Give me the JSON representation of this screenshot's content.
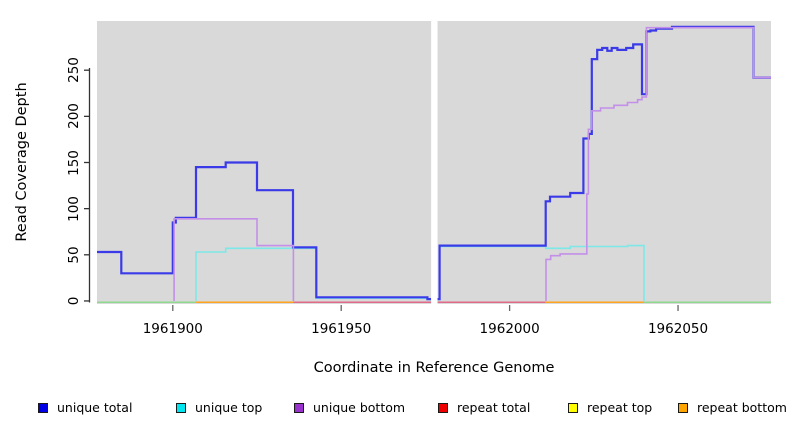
{
  "chart_data": {
    "type": "line",
    "subtype": "step-coverage-plot",
    "title": "",
    "xlabel": "Coordinate in Reference Genome",
    "ylabel": "Read Coverage Depth",
    "xlim": [
      1961877.5,
      1962077.6
    ],
    "ylim": [
      -3.3,
      303.3
    ],
    "xticks": [
      "1961900",
      "1961950",
      "1962000",
      "1962050"
    ],
    "xtick_values": [
      1961900,
      1961950,
      1962000,
      1962050
    ],
    "yticks": [
      "0",
      "50",
      "100",
      "150",
      "200",
      "250"
    ],
    "ytick_values": [
      0,
      50,
      100,
      150,
      200,
      250
    ],
    "grid": false,
    "plot_bg": "#D9D9D9",
    "gap": {
      "from": 1961976.7,
      "to": 1961978.6
    },
    "baseline_segments": [
      {
        "color": "#8FD98F",
        "from": 1961877.5,
        "to": 1961906.9
      },
      {
        "color": "#FFA41E",
        "from": 1961906.9,
        "to": 1961935.8
      },
      {
        "color": "#E06A88",
        "from": 1961935.8,
        "to": 1961976.7
      },
      {
        "color": "#E06A88",
        "from": 1961978.6,
        "to": 1962010.7
      },
      {
        "color": "#FFA41E",
        "from": 1962010.7,
        "to": 1962039.9
      },
      {
        "color": "#8FD98F",
        "from": 1962039.9,
        "to": 1962077.6
      }
    ],
    "series": [
      {
        "name": "unique top",
        "color": "#7DE8E8",
        "width": 1.6,
        "polylines": [
          [
            [
              1961906.9,
              0
            ],
            [
              1961906.9,
              53
            ],
            [
              1961915.7,
              53
            ],
            [
              1961915.7,
              57
            ],
            [
              1961942.6,
              57
            ],
            [
              1961942.6,
              3
            ],
            [
              1961975.6,
              3
            ],
            [
              1961975.6,
              1.5
            ],
            [
              1961976.7,
              1.5
            ]
          ],
          [
            [
              1961978.7,
              1.5
            ],
            [
              1961979.2,
              1.5
            ],
            [
              1961979.2,
              59
            ],
            [
              1962010.7,
              59
            ],
            [
              1962010.7,
              57
            ],
            [
              1962018,
              57
            ],
            [
              1962018,
              59
            ],
            [
              1962035,
              59
            ],
            [
              1962035,
              60
            ],
            [
              1962039.9,
              60
            ],
            [
              1962039.9,
              0
            ]
          ]
        ]
      },
      {
        "name": "unique total",
        "color": "#3A3AE8",
        "width": 2.2,
        "polylines": [
          [
            [
              1961877.5,
              53
            ],
            [
              1961884.7,
              53
            ],
            [
              1961884.7,
              30
            ],
            [
              1961900,
              30
            ],
            [
              1961900,
              85
            ],
            [
              1961900.9,
              85
            ],
            [
              1961900.9,
              90
            ],
            [
              1961906.9,
              90
            ],
            [
              1961906.9,
              145
            ],
            [
              1961915.7,
              145
            ],
            [
              1961915.7,
              150
            ],
            [
              1961925,
              150
            ],
            [
              1961925,
              120
            ],
            [
              1961935.7,
              120
            ],
            [
              1961935.7,
              58
            ],
            [
              1961942.6,
              58
            ],
            [
              1961942.6,
              4
            ],
            [
              1961975.6,
              4
            ],
            [
              1961975.6,
              2
            ],
            [
              1961976.7,
              2
            ]
          ],
          [
            [
              1961978.6,
              2
            ],
            [
              1961979.2,
              2
            ],
            [
              1961979.2,
              60
            ],
            [
              1962010.7,
              60
            ],
            [
              1962010.7,
              108
            ],
            [
              1962012,
              108
            ],
            [
              1962012,
              113
            ],
            [
              1962018,
              113
            ],
            [
              1962018,
              117
            ],
            [
              1962021.9,
              117
            ],
            [
              1962021.9,
              176
            ],
            [
              1962023.5,
              176
            ],
            [
              1962023.5,
              181
            ],
            [
              1962024.4,
              181
            ],
            [
              1962024.4,
              262
            ],
            [
              1962026,
              262
            ],
            [
              1962026,
              272
            ],
            [
              1962027.5,
              272
            ],
            [
              1962027.5,
              274
            ],
            [
              1962029,
              274
            ],
            [
              1962029,
              271
            ],
            [
              1962030.3,
              271
            ],
            [
              1962030.3,
              274
            ],
            [
              1962032,
              274
            ],
            [
              1962032,
              272
            ],
            [
              1962034.6,
              272
            ],
            [
              1962034.6,
              274
            ],
            [
              1962036.7,
              274
            ],
            [
              1962036.7,
              278
            ],
            [
              1962039.3,
              278
            ],
            [
              1962039.3,
              224
            ],
            [
              1962040.6,
              224
            ],
            [
              1962040.6,
              292
            ],
            [
              1962041.8,
              292
            ],
            [
              1962041.8,
              293
            ],
            [
              1962043.5,
              293
            ],
            [
              1962043.5,
              295
            ],
            [
              1962048.2,
              295
            ],
            [
              1962048.2,
              297
            ],
            [
              1962072.4,
              297
            ],
            [
              1962072.4,
              242
            ],
            [
              1962077.6,
              242
            ]
          ]
        ]
      },
      {
        "name": "unique bottom",
        "color": "#C38FE8",
        "width": 1.6,
        "polylines": [
          [
            [
              1961900.4,
              0
            ],
            [
              1961900.4,
              89
            ],
            [
              1961925,
              89
            ],
            [
              1961925,
              60
            ],
            [
              1961935.8,
              60
            ],
            [
              1961935.8,
              0
            ]
          ],
          [
            [
              1962010.8,
              0
            ],
            [
              1962010.8,
              45
            ],
            [
              1962012.2,
              45
            ],
            [
              1962012.2,
              49
            ],
            [
              1962015,
              49
            ],
            [
              1962015,
              51
            ],
            [
              1962022.9,
              51
            ],
            [
              1962022.9,
              116
            ],
            [
              1962023.4,
              116
            ],
            [
              1962023.4,
              186
            ],
            [
              1962024.4,
              186
            ],
            [
              1962024.4,
              206
            ],
            [
              1962027,
              206
            ],
            [
              1962027,
              209
            ],
            [
              1962031,
              209
            ],
            [
              1962031,
              212
            ],
            [
              1962035,
              212
            ],
            [
              1962035,
              215
            ],
            [
              1962038,
              215
            ],
            [
              1962038,
              218
            ],
            [
              1962039.3,
              218
            ],
            [
              1962039.3,
              221
            ],
            [
              1962040.6,
              221
            ],
            [
              1962040.6,
              296
            ],
            [
              1962072.4,
              296
            ],
            [
              1962072.4,
              242
            ],
            [
              1962077.6,
              242
            ]
          ]
        ]
      }
    ],
    "legend": {
      "position": "bottom",
      "items": [
        {
          "label": "unique total",
          "color": "#0000E6"
        },
        {
          "label": "unique top",
          "color": "#00E5EE"
        },
        {
          "label": "unique bottom",
          "color": "#9A32CD"
        },
        {
          "label": "repeat total",
          "color": "#EE0000"
        },
        {
          "label": "repeat top",
          "color": "#FFFF00"
        },
        {
          "label": "repeat bottom",
          "color": "#FFA500"
        }
      ]
    }
  }
}
